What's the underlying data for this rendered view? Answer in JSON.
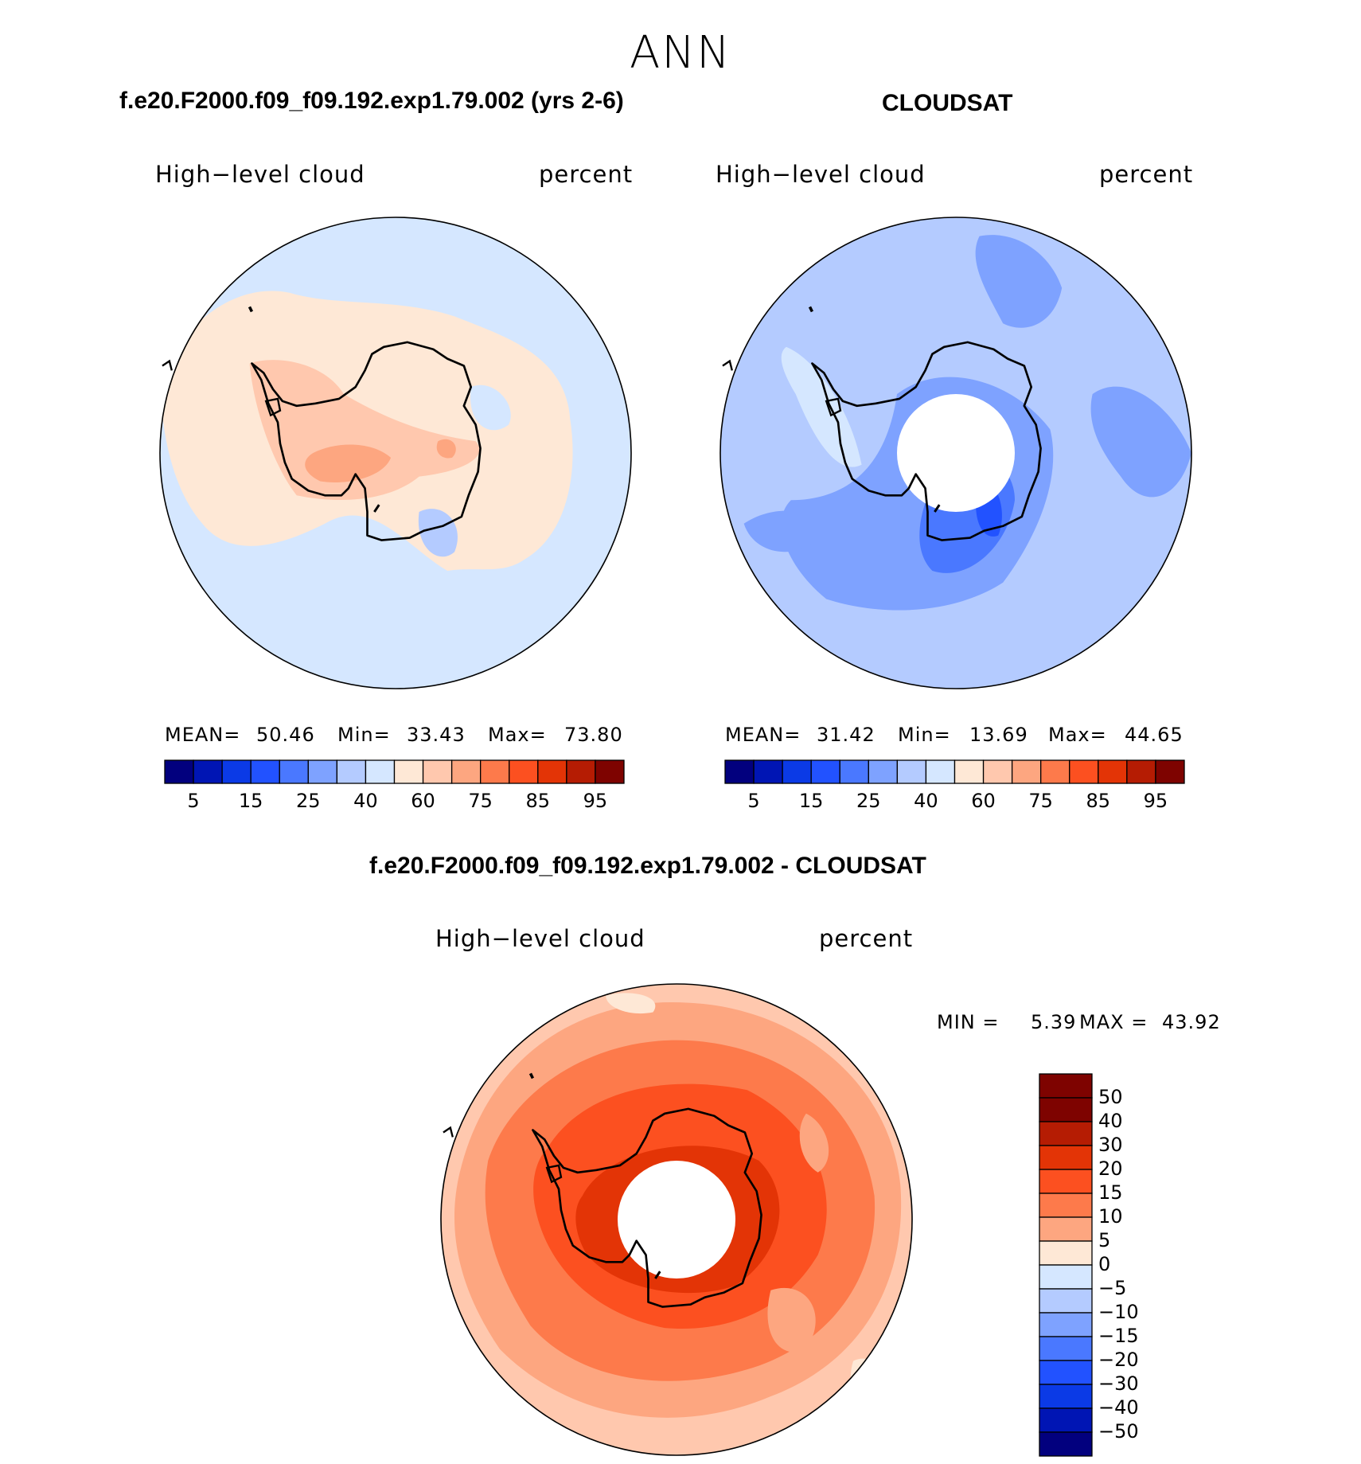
{
  "title": "ANN",
  "panel1": {
    "title": "f.e20.F2000.f09_f09.192.exp1.79.002 (yrs 2-6)",
    "variable": "High−level cloud",
    "units": "percent",
    "stats": {
      "mean_label": "MEAN=",
      "mean": "50.46",
      "min_label": "Min=",
      "min": "33.43",
      "max_label": "Max=",
      "max": "73.80"
    }
  },
  "panel2": {
    "title": "CLOUDSAT",
    "variable": "High−level cloud",
    "units": "percent",
    "stats": {
      "mean_label": "MEAN=",
      "mean": "31.42",
      "min_label": "Min=",
      "min": "13.69",
      "max_label": "Max=",
      "max": "44.65"
    }
  },
  "panel3": {
    "title": "f.e20.F2000.f09_f09.192.exp1.79.002 - CLOUDSAT",
    "variable": "High−level cloud",
    "units": "percent",
    "minmax": {
      "min_label": "MIN =",
      "min": "5.39",
      "max_label": "MAX =",
      "max": "43.92"
    }
  },
  "colorbar_top": {
    "colors": [
      "#02007e",
      "#0015b4",
      "#0b3ae6",
      "#2252ff",
      "#4a78ff",
      "#7ea2ff",
      "#b4cbff",
      "#d5e7ff",
      "#fee8d6",
      "#ffc8ae",
      "#fda680",
      "#fd7a4b",
      "#fc5020",
      "#e33406",
      "#b51c03",
      "#7e0300"
    ],
    "labels": [
      "5",
      "15",
      "25",
      "40",
      "60",
      "75",
      "85",
      "95"
    ]
  },
  "colorbar_diff": {
    "colors": [
      "#7e0300",
      "#b51c03",
      "#e33406",
      "#fc5020",
      "#fd7a4b",
      "#fda680",
      "#fee8d6",
      "#d5e7ff",
      "#b4cbff",
      "#7ea2ff",
      "#4a78ff",
      "#2252ff",
      "#0b3ae6",
      "#0015b4",
      "#02007e"
    ],
    "labels": [
      "50",
      "40",
      "30",
      "20",
      "15",
      "10",
      "5",
      "0",
      "−5",
      "−10",
      "−15",
      "−20",
      "−30",
      "−40",
      "−50"
    ]
  }
}
